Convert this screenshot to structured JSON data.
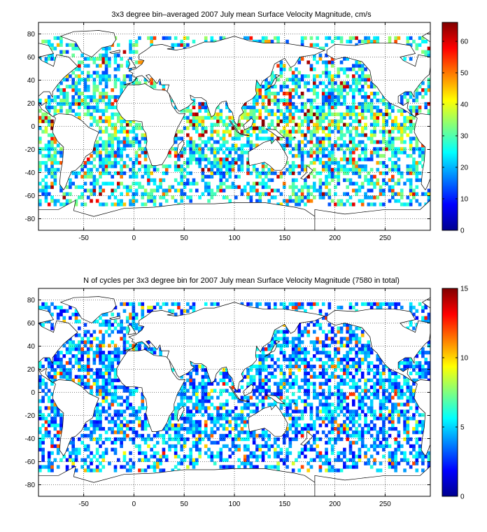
{
  "chart_data": [
    {
      "type": "heatmap",
      "title": "3x3 degree bin–averaged 2007 July mean Surface Velocity Magnitude, cm/s",
      "xlabel": "",
      "ylabel": "",
      "xlim": [
        -95,
        295
      ],
      "ylim": [
        -90,
        90
      ],
      "x_ticks": [
        -50,
        0,
        50,
        100,
        150,
        200,
        250
      ],
      "y_ticks": [
        -80,
        -60,
        -40,
        -20,
        0,
        20,
        40,
        60,
        80
      ],
      "grid": true,
      "bin_size_deg": 3,
      "colorbar": {
        "min": 0,
        "max": 66,
        "ticks": [
          0,
          10,
          20,
          30,
          40,
          50,
          60
        ]
      },
      "colormap": "jet"
    },
    {
      "type": "heatmap",
      "title": "N of cycles per 3x3 degree bin for 2007 July mean Surface Velocity Magnitude (7580 in total)",
      "xlabel": "",
      "ylabel": "",
      "xlim": [
        -95,
        295
      ],
      "ylim": [
        -90,
        90
      ],
      "x_ticks": [
        -50,
        0,
        50,
        100,
        150,
        200,
        250
      ],
      "y_ticks": [
        -80,
        -60,
        -40,
        -20,
        0,
        20,
        40,
        60,
        80
      ],
      "grid": true,
      "bin_size_deg": 3,
      "colorbar": {
        "min": 0,
        "max": 15,
        "ticks": [
          0,
          5,
          10,
          15
        ]
      },
      "colormap": "jet"
    }
  ]
}
